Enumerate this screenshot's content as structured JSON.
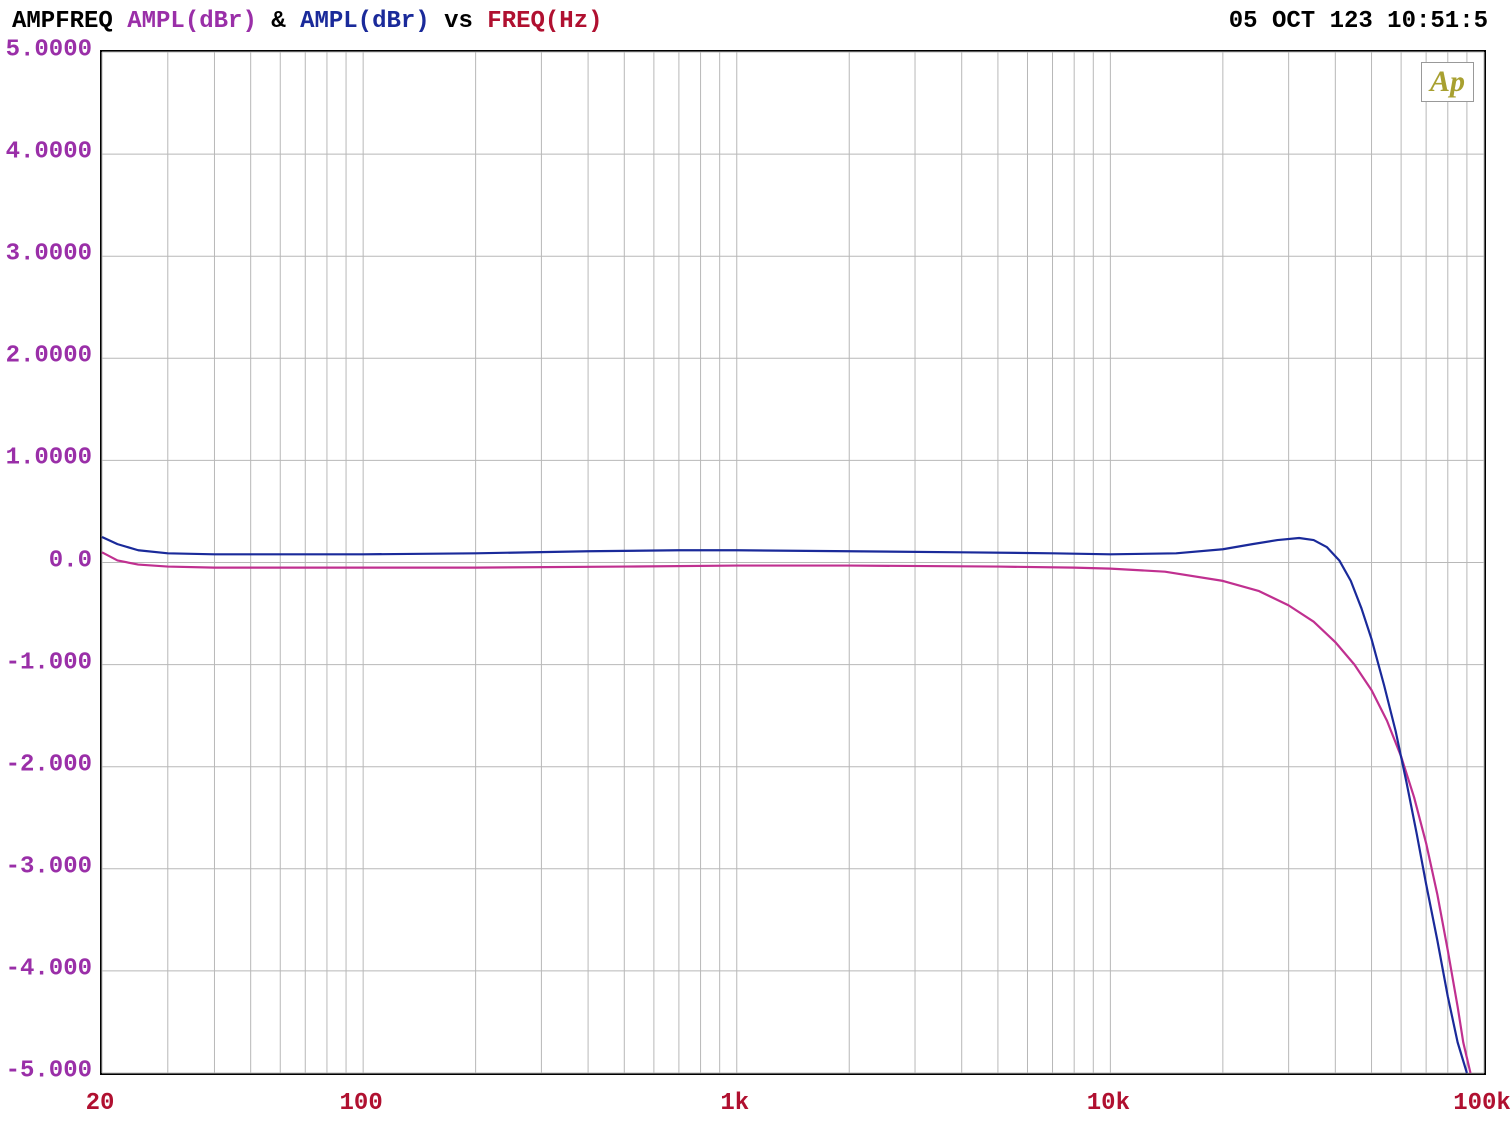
{
  "header": {
    "t1": {
      "text": "AMPFREQ ",
      "color": "#000000"
    },
    "t2": {
      "text": "AMPL(dBr)",
      "color": "#9a2fa8"
    },
    "t3": {
      "text": " & ",
      "color": "#000000"
    },
    "t4": {
      "text": "AMPL(dBr)",
      "color": "#1a2a9a"
    },
    "t5": {
      "text": " vs ",
      "color": "#000000"
    },
    "t6": {
      "text": "FREQ(Hz)",
      "color": "#b01030"
    },
    "timestamp": "05 OCT 123 10:51:5"
  },
  "logo": "Ap",
  "chart": {
    "type": "line",
    "xscale": "log",
    "xlim": [
      20,
      100000
    ],
    "ylim": [
      -5,
      5
    ],
    "background": "#ffffff",
    "grid_color": "#b8b8b8",
    "grid_width": 1,
    "border_color": "#000000",
    "yticks": [
      {
        "v": 5,
        "label": "5.0000"
      },
      {
        "v": 4,
        "label": "4.0000"
      },
      {
        "v": 3,
        "label": "3.0000"
      },
      {
        "v": 2,
        "label": "2.0000"
      },
      {
        "v": 1,
        "label": "1.0000"
      },
      {
        "v": 0,
        "label": "0.0"
      },
      {
        "v": -1,
        "label": "-1.000"
      },
      {
        "v": -2,
        "label": "-2.000"
      },
      {
        "v": -3,
        "label": "-3.000"
      },
      {
        "v": -4,
        "label": "-4.000"
      },
      {
        "v": -5,
        "label": "-5.000"
      }
    ],
    "ytick_color": "#9a2fa8",
    "ytick_fontsize": 24,
    "xticks_labeled": [
      {
        "v": 20,
        "label": "20"
      },
      {
        "v": 100,
        "label": "100"
      },
      {
        "v": 1000,
        "label": "1k"
      },
      {
        "v": 10000,
        "label": "10k"
      },
      {
        "v": 100000,
        "label": "100k"
      }
    ],
    "xticks_minor": [
      30,
      40,
      50,
      60,
      70,
      80,
      90,
      200,
      300,
      400,
      500,
      600,
      700,
      800,
      900,
      2000,
      3000,
      4000,
      5000,
      6000,
      7000,
      8000,
      9000,
      20000,
      30000,
      40000,
      50000,
      60000,
      70000,
      80000,
      90000
    ],
    "xtick_color": "#b01030",
    "xtick_fontsize": 24,
    "line_width": 2.2,
    "series": [
      {
        "name": "ch-magenta",
        "color": "#c03090",
        "xy": [
          [
            20,
            0.1
          ],
          [
            22,
            0.02
          ],
          [
            25,
            -0.02
          ],
          [
            30,
            -0.04
          ],
          [
            40,
            -0.05
          ],
          [
            60,
            -0.05
          ],
          [
            100,
            -0.05
          ],
          [
            200,
            -0.05
          ],
          [
            500,
            -0.04
          ],
          [
            1000,
            -0.03
          ],
          [
            2000,
            -0.03
          ],
          [
            5000,
            -0.04
          ],
          [
            8000,
            -0.05
          ],
          [
            10000,
            -0.06
          ],
          [
            14000,
            -0.09
          ],
          [
            20000,
            -0.18
          ],
          [
            25000,
            -0.28
          ],
          [
            30000,
            -0.42
          ],
          [
            35000,
            -0.58
          ],
          [
            40000,
            -0.78
          ],
          [
            45000,
            -1.0
          ],
          [
            50000,
            -1.25
          ],
          [
            55000,
            -1.55
          ],
          [
            60000,
            -1.9
          ],
          [
            65000,
            -2.3
          ],
          [
            70000,
            -2.75
          ],
          [
            75000,
            -3.25
          ],
          [
            80000,
            -3.8
          ],
          [
            85000,
            -4.35
          ],
          [
            88000,
            -4.7
          ],
          [
            92000,
            -5.0
          ]
        ]
      },
      {
        "name": "ch-blue",
        "color": "#1a2a9a",
        "xy": [
          [
            20,
            0.25
          ],
          [
            22,
            0.18
          ],
          [
            25,
            0.12
          ],
          [
            30,
            0.09
          ],
          [
            40,
            0.08
          ],
          [
            60,
            0.08
          ],
          [
            100,
            0.08
          ],
          [
            200,
            0.09
          ],
          [
            400,
            0.11
          ],
          [
            700,
            0.12
          ],
          [
            1000,
            0.12
          ],
          [
            2000,
            0.11
          ],
          [
            4000,
            0.1
          ],
          [
            7000,
            0.09
          ],
          [
            10000,
            0.08
          ],
          [
            15000,
            0.09
          ],
          [
            20000,
            0.13
          ],
          [
            24000,
            0.18
          ],
          [
            28000,
            0.22
          ],
          [
            32000,
            0.24
          ],
          [
            35000,
            0.22
          ],
          [
            38000,
            0.15
          ],
          [
            41000,
            0.02
          ],
          [
            44000,
            -0.18
          ],
          [
            47000,
            -0.45
          ],
          [
            50000,
            -0.75
          ],
          [
            54000,
            -1.2
          ],
          [
            58000,
            -1.65
          ],
          [
            62000,
            -2.15
          ],
          [
            66000,
            -2.65
          ],
          [
            70000,
            -3.15
          ],
          [
            75000,
            -3.7
          ],
          [
            80000,
            -4.25
          ],
          [
            85000,
            -4.7
          ],
          [
            90000,
            -5.0
          ]
        ]
      }
    ]
  }
}
